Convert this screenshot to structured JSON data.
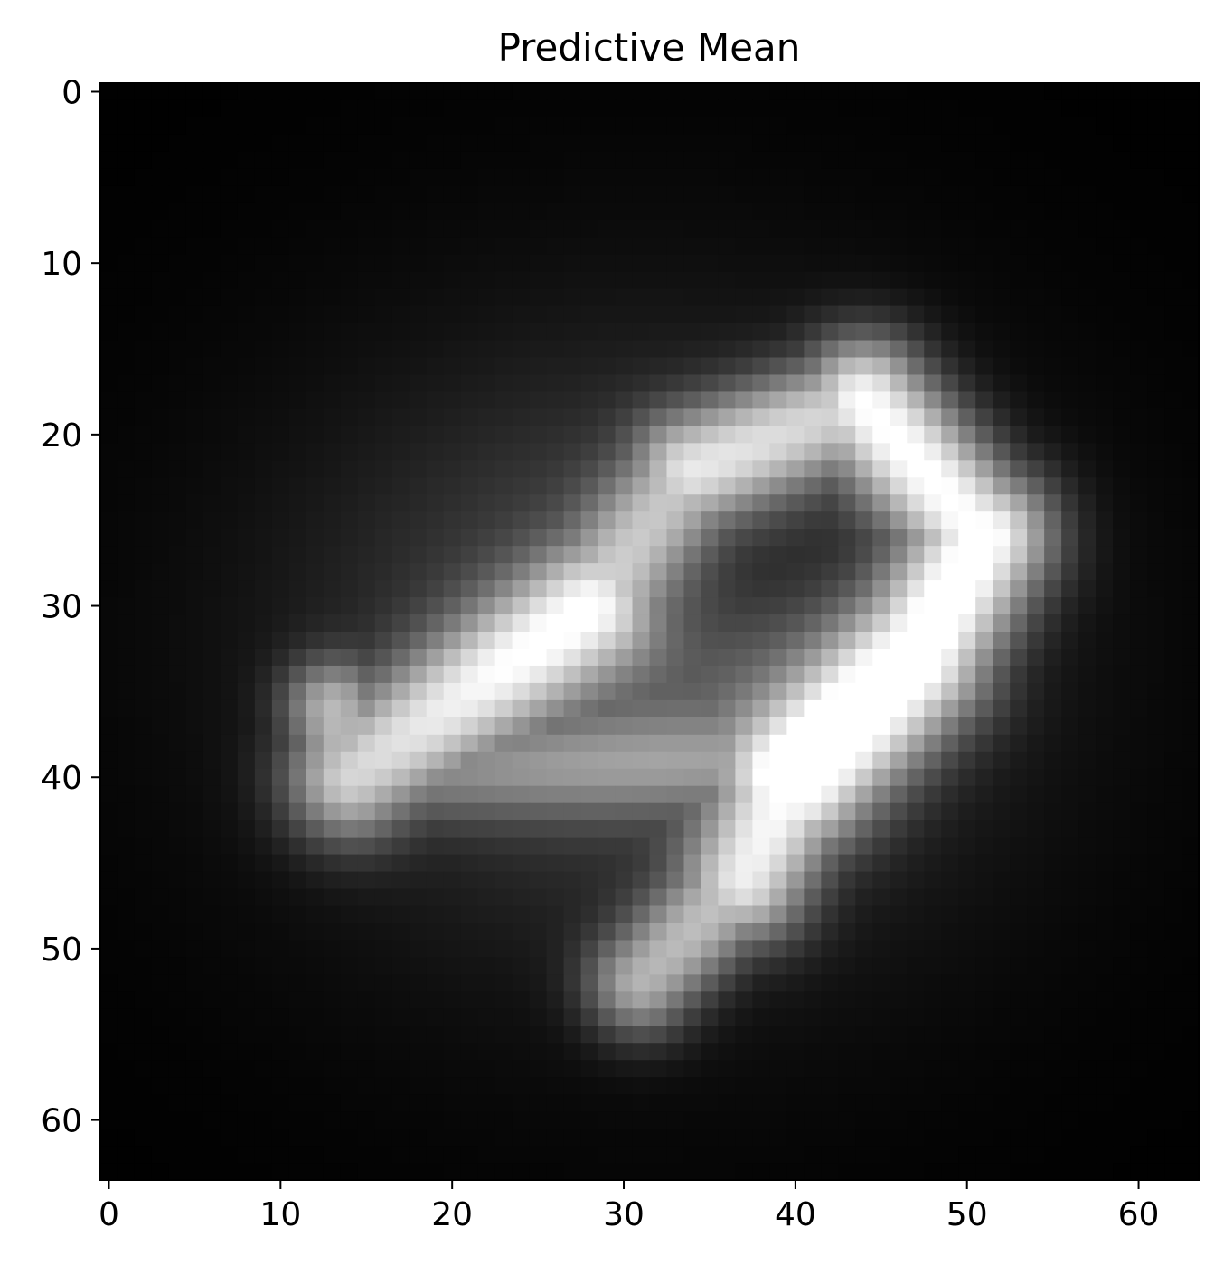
{
  "chart_data": {
    "type": "heatmap",
    "title": "Predictive Mean",
    "xlabel": "",
    "ylabel": "",
    "colormap": "gray",
    "grid": false,
    "image_size": [
      64,
      64
    ],
    "xlim": [
      -0.5,
      63.5
    ],
    "ylim": [
      63.5,
      -0.5
    ],
    "x_ticks": [
      0,
      10,
      20,
      30,
      40,
      50,
      60
    ],
    "y_ticks": [
      0,
      10,
      20,
      30,
      40,
      50,
      60
    ],
    "x_tick_labels": [
      "0",
      "10",
      "20",
      "30",
      "40",
      "50",
      "60"
    ],
    "y_tick_labels": [
      "0",
      "10",
      "20",
      "30",
      "40",
      "50",
      "60"
    ],
    "intensity_model": {
      "description": "approximate pixel intensities (0-1) of the blurred digit: sum of soft stroke segments over a dim halo",
      "halo": {
        "center": [
          31,
          33
        ],
        "radii": [
          24,
          22
        ],
        "amplitude": 0.14
      },
      "plateau": {
        "center": [
          32,
          32
        ],
        "radii": [
          16,
          13
        ],
        "amplitude": 0.22
      },
      "strokes": [
        {
          "from": [
            14,
            40
          ],
          "to": [
            28,
            30
          ],
          "width": 2.6,
          "amplitude": 0.72
        },
        {
          "from": [
            28,
            30
          ],
          "to": [
            34,
            22
          ],
          "width": 2.4,
          "amplitude": 0.55
        },
        {
          "from": [
            34,
            22
          ],
          "to": [
            44,
            18
          ],
          "width": 2.4,
          "amplitude": 0.7
        },
        {
          "from": [
            44,
            18
          ],
          "to": [
            51,
            26
          ],
          "width": 2.6,
          "amplitude": 0.9
        },
        {
          "from": [
            51,
            26
          ],
          "to": [
            47,
            33
          ],
          "width": 2.8,
          "amplitude": 0.95
        },
        {
          "from": [
            47,
            33
          ],
          "to": [
            40,
            40
          ],
          "width": 3.0,
          "amplitude": 0.95
        },
        {
          "from": [
            40,
            40
          ],
          "to": [
            37,
            46
          ],
          "width": 2.6,
          "amplitude": 0.78
        },
        {
          "from": [
            37,
            46
          ],
          "to": [
            31,
            52
          ],
          "width": 2.2,
          "amplitude": 0.62
        },
        {
          "from": [
            14,
            40
          ],
          "to": [
            38,
            39
          ],
          "width": 2.0,
          "amplitude": 0.35
        },
        {
          "from": [
            13,
            36
          ],
          "to": [
            14,
            40
          ],
          "width": 2.0,
          "amplitude": 0.6
        }
      ],
      "dark_interior": {
        "center": [
          36,
          28
        ],
        "radii": [
          8,
          4
        ],
        "amplitude": -0.12
      }
    }
  }
}
